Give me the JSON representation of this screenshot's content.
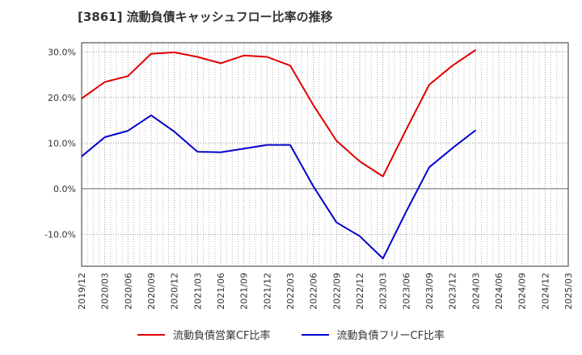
{
  "header": {
    "title": "[3861]  流動負債キャッシュフロー比率の推移"
  },
  "chart_data": {
    "type": "line",
    "title": "[3861]  流動負債キャッシュフロー比率の推移",
    "x": [
      "2019/12",
      "2020/03",
      "2020/06",
      "2020/09",
      "2020/12",
      "2021/03",
      "2021/06",
      "2021/09",
      "2021/12",
      "2022/03",
      "2022/06",
      "2022/09",
      "2022/12",
      "2023/03",
      "2023/06",
      "2023/09",
      "2023/12",
      "2024/03",
      "2024/06",
      "2024/09",
      "2024/12",
      "2025/03"
    ],
    "ylim": [
      -17,
      32
    ],
    "yticks": [
      30,
      20,
      10,
      0,
      -10
    ],
    "ytick_labels": [
      "30.0%",
      "20.0%",
      "10.0%",
      "0.0%",
      "-10.0%"
    ],
    "grid": true,
    "legend_position": "bottom",
    "series": [
      {
        "name": "流動負債営業CF比率",
        "color": "#e00000",
        "values": [
          19.8,
          23.4,
          24.7,
          29.6,
          29.9,
          28.9,
          27.5,
          29.2,
          28.9,
          27.0,
          18.3,
          10.5,
          6.0,
          2.7,
          12.9,
          22.8,
          27.0,
          30.4,
          null,
          null,
          null,
          null
        ]
      },
      {
        "name": "流動負債フリーCF比率",
        "color": "#0000cc",
        "values": [
          7.1,
          11.3,
          12.7,
          16.1,
          12.5,
          8.1,
          8.0,
          8.8,
          9.6,
          9.6,
          0.5,
          -7.4,
          -10.4,
          -15.3,
          -5.1,
          4.7,
          8.9,
          12.8,
          null,
          null,
          null,
          null
        ]
      }
    ]
  }
}
